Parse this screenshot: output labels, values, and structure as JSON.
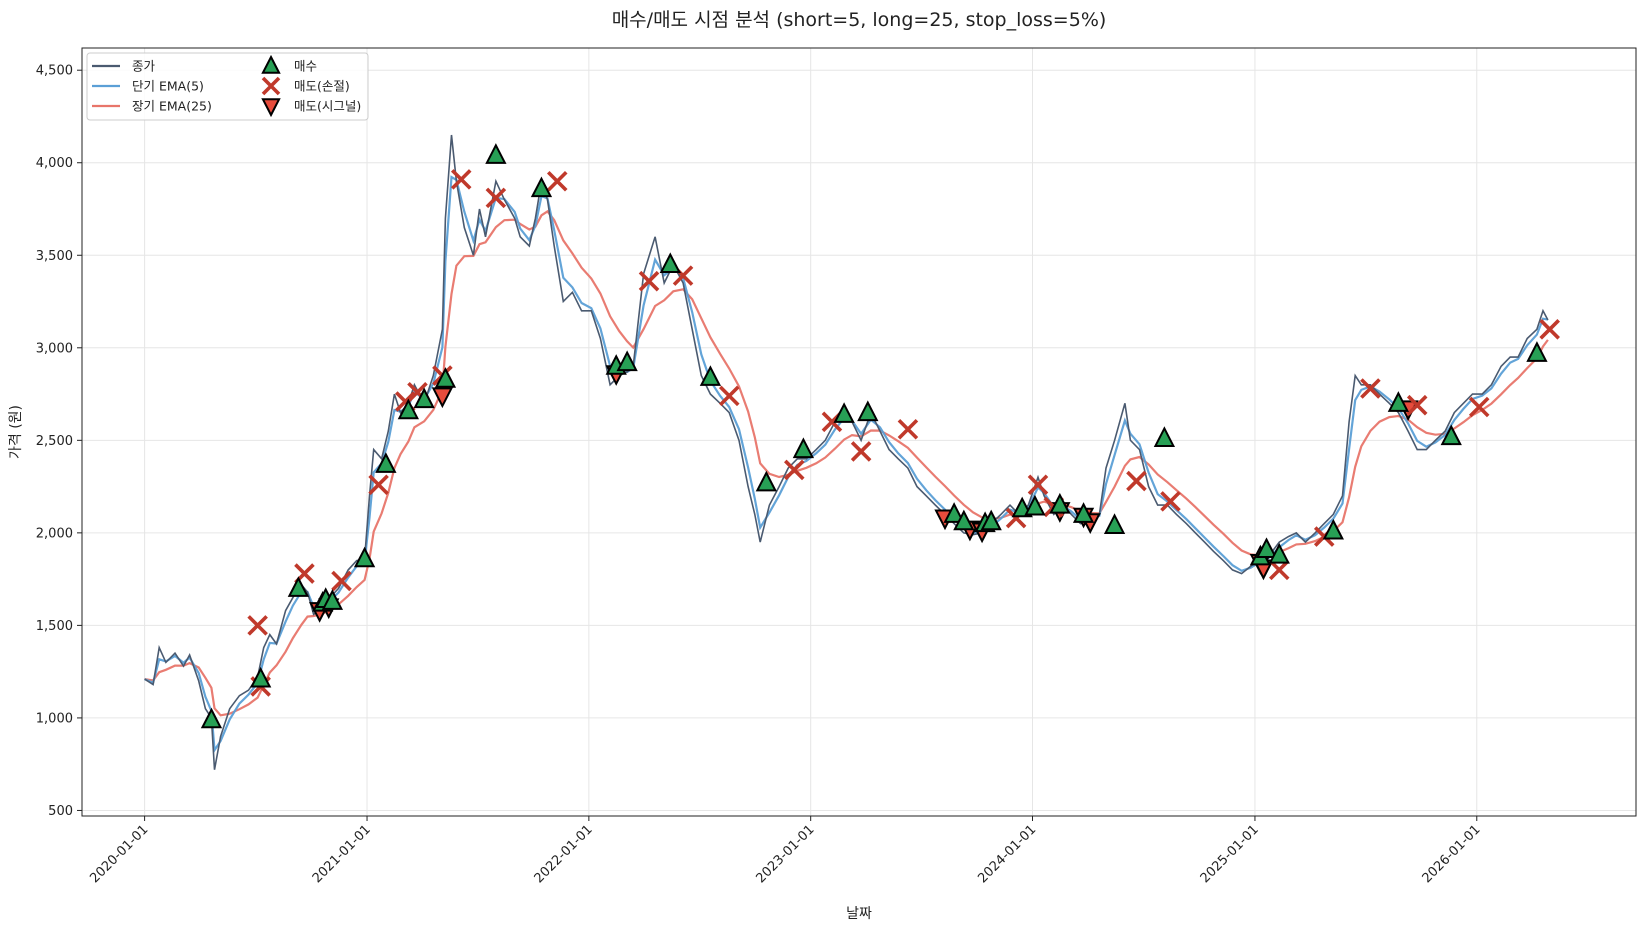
{
  "chart_data": {
    "type": "line",
    "title": "매수/매도 시점 분석 (short=5, long=25, stop_loss=5%)",
    "xlabel": "날짜",
    "ylabel": "가격 (원)",
    "x_range": [
      "2019-09-20",
      "2026-09-20"
    ],
    "ylim": [
      470,
      4620
    ],
    "x_ticks": [
      "2020-01-01",
      "2021-01-01",
      "2022-01-01",
      "2023-01-01",
      "2024-01-01",
      "2025-01-01",
      "2026-01-01"
    ],
    "y_ticks": [
      500,
      1000,
      1500,
      2000,
      2500,
      3000,
      3500,
      4000,
      4500
    ],
    "y_tick_labels": [
      "500",
      "1,000",
      "1,500",
      "2,000",
      "2,500",
      "3,000",
      "3,500",
      "4,000",
      "4,500"
    ],
    "grid": true,
    "legend_position": "top-left",
    "legend": [
      {
        "label": "종가",
        "kind": "line",
        "color": "#4a5a70"
      },
      {
        "label": "단기 EMA(5)",
        "kind": "line",
        "color": "#5b9fd6"
      },
      {
        "label": "장기 EMA(25)",
        "kind": "line",
        "color": "#e8756a"
      },
      {
        "label": "매수",
        "kind": "triangle-up",
        "color": "#27a055"
      },
      {
        "label": "매도(손절)",
        "kind": "x",
        "color": "#c0392b"
      },
      {
        "label": "매도(시그널)",
        "kind": "triangle-down",
        "color": "#e74c3c"
      }
    ],
    "series": [
      {
        "name": "종가",
        "color": "#4a5a70",
        "points": [
          [
            "2020-01-01",
            1210
          ],
          [
            "2020-01-15",
            1180
          ],
          [
            "2020-01-25",
            1380
          ],
          [
            "2020-02-05",
            1300
          ],
          [
            "2020-02-20",
            1350
          ],
          [
            "2020-03-05",
            1280
          ],
          [
            "2020-03-15",
            1340
          ],
          [
            "2020-03-30",
            1200
          ],
          [
            "2020-04-10",
            1050
          ],
          [
            "2020-04-20",
            1000
          ],
          [
            "2020-04-25",
            720
          ],
          [
            "2020-05-05",
            900
          ],
          [
            "2020-05-20",
            1050
          ],
          [
            "2020-06-05",
            1120
          ],
          [
            "2020-06-20",
            1150
          ],
          [
            "2020-07-05",
            1220
          ],
          [
            "2020-07-15",
            1380
          ],
          [
            "2020-07-25",
            1450
          ],
          [
            "2020-08-05",
            1400
          ],
          [
            "2020-08-20",
            1580
          ],
          [
            "2020-09-01",
            1650
          ],
          [
            "2020-09-15",
            1720
          ],
          [
            "2020-09-25",
            1680
          ],
          [
            "2020-10-05",
            1560
          ],
          [
            "2020-10-20",
            1600
          ],
          [
            "2020-11-01",
            1650
          ],
          [
            "2020-11-15",
            1700
          ],
          [
            "2020-12-01",
            1800
          ],
          [
            "2020-12-15",
            1850
          ],
          [
            "2020-12-28",
            1860
          ],
          [
            "2021-01-05",
            2200
          ],
          [
            "2021-01-12",
            2450
          ],
          [
            "2021-01-25",
            2400
          ],
          [
            "2021-02-05",
            2550
          ],
          [
            "2021-02-15",
            2750
          ],
          [
            "2021-02-25",
            2650
          ],
          [
            "2021-03-10",
            2700
          ],
          [
            "2021-03-20",
            2800
          ],
          [
            "2021-04-05",
            2700
          ],
          [
            "2021-04-20",
            2850
          ],
          [
            "2021-05-05",
            3100
          ],
          [
            "2021-05-10",
            3700
          ],
          [
            "2021-05-20",
            4150
          ],
          [
            "2021-05-28",
            3900
          ],
          [
            "2021-06-10",
            3650
          ],
          [
            "2021-06-25",
            3500
          ],
          [
            "2021-07-05",
            3750
          ],
          [
            "2021-07-15",
            3600
          ],
          [
            "2021-08-01",
            3900
          ],
          [
            "2021-08-15",
            3800
          ],
          [
            "2021-09-01",
            3700
          ],
          [
            "2021-09-10",
            3600
          ],
          [
            "2021-09-25",
            3550
          ],
          [
            "2021-10-05",
            3700
          ],
          [
            "2021-10-15",
            3900
          ],
          [
            "2021-10-25",
            3800
          ],
          [
            "2021-11-05",
            3550
          ],
          [
            "2021-11-20",
            3250
          ],
          [
            "2021-12-05",
            3300
          ],
          [
            "2021-12-20",
            3200
          ],
          [
            "2022-01-05",
            3200
          ],
          [
            "2022-01-20",
            3050
          ],
          [
            "2022-02-05",
            2800
          ],
          [
            "2022-02-20",
            2850
          ],
          [
            "2022-03-05",
            2870
          ],
          [
            "2022-03-15",
            2900
          ],
          [
            "2022-04-01",
            3400
          ],
          [
            "2022-04-20",
            3600
          ],
          [
            "2022-05-05",
            3350
          ],
          [
            "2022-05-20",
            3450
          ],
          [
            "2022-06-05",
            3350
          ],
          [
            "2022-06-20",
            3100
          ],
          [
            "2022-07-05",
            2850
          ],
          [
            "2022-07-20",
            2750
          ],
          [
            "2022-08-05",
            2700
          ],
          [
            "2022-08-20",
            2650
          ],
          [
            "2022-09-05",
            2500
          ],
          [
            "2022-09-20",
            2250
          ],
          [
            "2022-10-01",
            2100
          ],
          [
            "2022-10-10",
            1950
          ],
          [
            "2022-10-25",
            2150
          ],
          [
            "2022-11-10",
            2250
          ],
          [
            "2022-11-25",
            2350
          ],
          [
            "2022-12-10",
            2400
          ],
          [
            "2022-12-25",
            2400
          ],
          [
            "2023-01-10",
            2450
          ],
          [
            "2023-01-25",
            2500
          ],
          [
            "2023-02-10",
            2600
          ],
          [
            "2023-02-25",
            2650
          ],
          [
            "2023-03-10",
            2600
          ],
          [
            "2023-03-25",
            2500
          ],
          [
            "2023-04-10",
            2650
          ],
          [
            "2023-04-25",
            2550
          ],
          [
            "2023-05-10",
            2450
          ],
          [
            "2023-05-25",
            2400
          ],
          [
            "2023-06-10",
            2350
          ],
          [
            "2023-06-25",
            2250
          ],
          [
            "2023-07-10",
            2200
          ],
          [
            "2023-07-25",
            2150
          ],
          [
            "2023-08-10",
            2100
          ],
          [
            "2023-08-25",
            2050
          ],
          [
            "2023-09-10",
            2000
          ],
          [
            "2023-09-25",
            1990
          ],
          [
            "2023-10-10",
            2000
          ],
          [
            "2023-10-25",
            2050
          ],
          [
            "2023-11-10",
            2100
          ],
          [
            "2023-11-25",
            2150
          ],
          [
            "2023-12-10",
            2100
          ],
          [
            "2023-12-25",
            2150
          ],
          [
            "2024-01-10",
            2300
          ],
          [
            "2024-01-20",
            2200
          ],
          [
            "2024-02-05",
            2100
          ],
          [
            "2024-02-20",
            2150
          ],
          [
            "2024-03-05",
            2100
          ],
          [
            "2024-03-20",
            2050
          ],
          [
            "2024-04-05",
            2080
          ],
          [
            "2024-04-20",
            2100
          ],
          [
            "2024-05-01",
            2350
          ],
          [
            "2024-05-15",
            2500
          ],
          [
            "2024-06-01",
            2700
          ],
          [
            "2024-06-10",
            2500
          ],
          [
            "2024-06-25",
            2450
          ],
          [
            "2024-07-10",
            2250
          ],
          [
            "2024-07-25",
            2150
          ],
          [
            "2024-08-10",
            2150
          ],
          [
            "2024-08-25",
            2100
          ],
          [
            "2024-09-10",
            2050
          ],
          [
            "2024-09-25",
            2000
          ],
          [
            "2024-10-10",
            1950
          ],
          [
            "2024-10-25",
            1900
          ],
          [
            "2024-11-10",
            1850
          ],
          [
            "2024-11-25",
            1800
          ],
          [
            "2024-12-10",
            1780
          ],
          [
            "2024-12-25",
            1820
          ],
          [
            "2025-01-10",
            1860
          ],
          [
            "2025-01-25",
            1880
          ],
          [
            "2025-02-10",
            1950
          ],
          [
            "2025-02-25",
            1980
          ],
          [
            "2025-03-10",
            2000
          ],
          [
            "2025-03-25",
            1950
          ],
          [
            "2025-04-10",
            2000
          ],
          [
            "2025-04-25",
            2050
          ],
          [
            "2025-05-10",
            2100
          ],
          [
            "2025-05-25",
            2200
          ],
          [
            "2025-06-05",
            2600
          ],
          [
            "2025-06-15",
            2850
          ],
          [
            "2025-06-25",
            2800
          ],
          [
            "2025-07-10",
            2800
          ],
          [
            "2025-07-25",
            2750
          ],
          [
            "2025-08-10",
            2700
          ],
          [
            "2025-08-25",
            2650
          ],
          [
            "2025-09-10",
            2550
          ],
          [
            "2025-09-25",
            2450
          ],
          [
            "2025-10-10",
            2450
          ],
          [
            "2025-10-25",
            2500
          ],
          [
            "2025-11-10",
            2550
          ],
          [
            "2025-11-25",
            2650
          ],
          [
            "2025-12-10",
            2700
          ],
          [
            "2025-12-25",
            2750
          ],
          [
            "2026-01-10",
            2750
          ],
          [
            "2026-01-25",
            2800
          ],
          [
            "2026-02-10",
            2900
          ],
          [
            "2026-02-25",
            2950
          ],
          [
            "2026-03-10",
            2950
          ],
          [
            "2026-03-25",
            3050
          ],
          [
            "2026-04-10",
            3100
          ],
          [
            "2026-04-20",
            3200
          ],
          [
            "2026-04-28",
            3150
          ]
        ]
      }
    ],
    "markers": {
      "buy": [
        [
          "2020-04-20",
          990
        ],
        [
          "2020-07-10",
          1210
        ],
        [
          "2020-09-10",
          1700
        ],
        [
          "2020-10-20",
          1620
        ],
        [
          "2020-10-25",
          1640
        ],
        [
          "2020-11-05",
          1630
        ],
        [
          "2020-12-28",
          1860
        ],
        [
          "2021-02-01",
          2370
        ],
        [
          "2021-03-10",
          2660
        ],
        [
          "2021-04-05",
          2720
        ],
        [
          "2021-05-10",
          2830
        ],
        [
          "2021-08-01",
          4040
        ],
        [
          "2021-10-15",
          3860
        ],
        [
          "2022-02-15",
          2900
        ],
        [
          "2022-03-05",
          2920
        ],
        [
          "2022-05-15",
          3450
        ],
        [
          "2022-07-20",
          2840
        ],
        [
          "2022-10-20",
          2270
        ],
        [
          "2022-12-20",
          2450
        ],
        [
          "2023-02-25",
          2640
        ],
        [
          "2023-04-05",
          2650
        ],
        [
          "2023-08-25",
          2100
        ],
        [
          "2023-09-10",
          2060
        ],
        [
          "2023-10-15",
          2050
        ],
        [
          "2023-10-25",
          2060
        ],
        [
          "2023-12-15",
          2130
        ],
        [
          "2024-01-05",
          2140
        ],
        [
          "2024-02-15",
          2150
        ],
        [
          "2024-03-25",
          2100
        ],
        [
          "2024-05-15",
          2040
        ],
        [
          "2024-08-05",
          2510
        ],
        [
          "2025-01-10",
          1870
        ],
        [
          "2025-01-20",
          1910
        ],
        [
          "2025-02-10",
          1880
        ],
        [
          "2025-05-10",
          2010
        ],
        [
          "2025-08-25",
          2700
        ],
        [
          "2025-11-20",
          2520
        ],
        [
          "2026-04-10",
          2970
        ]
      ],
      "sell_stop": [
        [
          "2020-07-05",
          1500
        ],
        [
          "2020-07-10",
          1170
        ],
        [
          "2020-09-20",
          1780
        ],
        [
          "2020-11-20",
          1740
        ],
        [
          "2021-01-20",
          2260
        ],
        [
          "2021-03-05",
          2710
        ],
        [
          "2021-03-25",
          2760
        ],
        [
          "2021-05-05",
          2850
        ],
        [
          "2021-06-05",
          3910
        ],
        [
          "2021-08-01",
          3810
        ],
        [
          "2021-11-10",
          3900
        ],
        [
          "2022-04-10",
          3360
        ],
        [
          "2022-06-05",
          3390
        ],
        [
          "2022-08-20",
          2740
        ],
        [
          "2022-12-05",
          2340
        ],
        [
          "2023-02-05",
          2600
        ],
        [
          "2023-03-25",
          2440
        ],
        [
          "2023-06-10",
          2560
        ],
        [
          "2023-12-05",
          2080
        ],
        [
          "2024-01-10",
          2260
        ],
        [
          "2024-02-05",
          2140
        ],
        [
          "2024-06-20",
          2280
        ],
        [
          "2024-08-15",
          2170
        ],
        [
          "2025-02-10",
          1800
        ],
        [
          "2025-04-25",
          1980
        ],
        [
          "2025-07-10",
          2780
        ],
        [
          "2025-09-25",
          2690
        ],
        [
          "2026-01-05",
          2680
        ],
        [
          "2026-05-01",
          3100
        ]
      ],
      "sell_signal": [
        [
          "2021-05-05",
          2740
        ],
        [
          "2020-10-15",
          1580
        ],
        [
          "2020-10-30",
          1600
        ],
        [
          "2022-02-15",
          2860
        ],
        [
          "2023-08-10",
          2080
        ],
        [
          "2023-09-20",
          2020
        ],
        [
          "2023-10-10",
          2010
        ],
        [
          "2024-02-15",
          2120
        ],
        [
          "2024-03-25",
          2090
        ],
        [
          "2024-04-05",
          2060
        ],
        [
          "2025-01-10",
          1840
        ],
        [
          "2025-01-15",
          1810
        ],
        [
          "2025-09-10",
          2670
        ]
      ]
    }
  }
}
